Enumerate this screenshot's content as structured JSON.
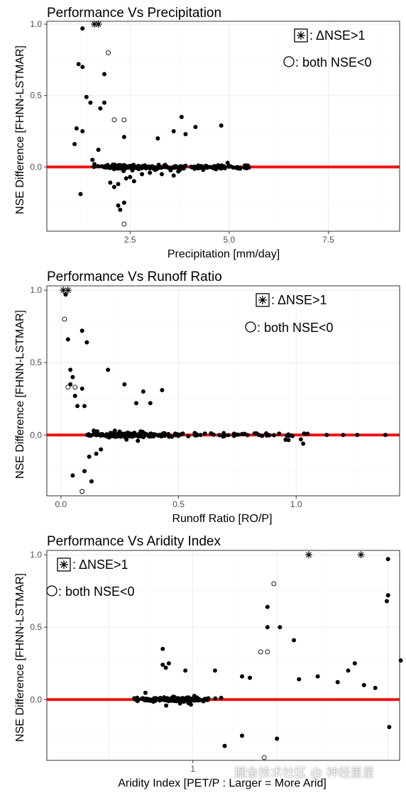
{
  "colors": {
    "point": "#000000",
    "zero_line": "#ee1111",
    "grid_major": "#ebebeb",
    "grid_minor": "#f5f5f5",
    "frame": "#333333"
  },
  "legend": {
    "star_label": ": ΔNSE>1",
    "circle_label": ": both NSE<0"
  },
  "watermark": "掘金技术社区 @ 神经星星",
  "chart_data": [
    {
      "type": "scatter",
      "title": "Performance Vs Precipitation",
      "xlabel": "Precipitation [mm/day]",
      "ylabel": "NSE Difference [FHNN-LSTMAR]",
      "xscale": "linear",
      "xlim": [
        0.4,
        9.3
      ],
      "ylim": [
        -0.45,
        1.02
      ],
      "xticks": [
        2.5,
        5.0,
        7.5
      ],
      "xtick_labels": [
        "2.5",
        "5.0",
        "7.5"
      ],
      "yticks": [
        0.0,
        0.5,
        1.0
      ],
      "ytick_labels": [
        "0.0",
        "0.5",
        "1.0"
      ],
      "grid": true,
      "legend_position": "top-right",
      "reference_line_y": 0,
      "stars": [
        [
          1.6,
          1.0
        ],
        [
          1.7,
          1.0
        ]
      ],
      "hollow": [
        [
          1.95,
          0.8
        ],
        [
          2.1,
          0.33
        ],
        [
          2.35,
          0.33
        ],
        [
          2.35,
          -0.4
        ]
      ],
      "filled": [
        [
          1.3,
          0.97
        ],
        [
          1.2,
          0.72
        ],
        [
          1.3,
          0.7
        ],
        [
          1.4,
          0.49
        ],
        [
          1.5,
          0.45
        ],
        [
          1.85,
          0.65
        ],
        [
          1.85,
          0.45
        ],
        [
          1.75,
          0.41
        ],
        [
          2.35,
          0.21
        ],
        [
          3.2,
          0.2
        ],
        [
          3.8,
          0.35
        ],
        [
          3.6,
          0.25
        ],
        [
          3.9,
          0.23
        ],
        [
          4.15,
          0.28
        ],
        [
          4.8,
          0.29
        ],
        [
          1.15,
          0.27
        ],
        [
          1.3,
          0.25
        ],
        [
          1.1,
          0.16
        ],
        [
          1.25,
          -0.19
        ],
        [
          2.25,
          -0.3
        ],
        [
          2.2,
          -0.27
        ],
        [
          2.35,
          -0.25
        ],
        [
          2.1,
          -0.14
        ],
        [
          2.2,
          -0.12
        ],
        [
          2.0,
          -0.11
        ],
        [
          1.55,
          0.05
        ],
        [
          1.7,
          0.12
        ],
        [
          1.6,
          0.02
        ],
        [
          2.4,
          -0.08
        ],
        [
          2.5,
          -0.07
        ],
        [
          2.6,
          -0.1
        ],
        [
          2.8,
          -0.05
        ],
        [
          3.0,
          -0.04
        ],
        [
          3.3,
          -0.05
        ],
        [
          3.6,
          -0.06
        ]
      ]
    },
    {
      "type": "scatter",
      "title": "Performance Vs Runoff Ratio",
      "xlabel": "Runoff Ratio [RO/P]",
      "ylabel": "NSE Difference [FHNN-LSTMAR]",
      "xscale": "linear",
      "xlim": [
        -0.06,
        1.44
      ],
      "ylim": [
        -0.42,
        1.03
      ],
      "xticks": [
        0.0,
        0.5,
        1.0
      ],
      "xtick_labels": [
        "0.0",
        "0.5",
        "1.0"
      ],
      "yticks": [
        0.0,
        0.5,
        1.0
      ],
      "ytick_labels": [
        "0.0",
        "0.5",
        "1.0"
      ],
      "grid": true,
      "legend_position": "top-right",
      "reference_line_y": 0,
      "stars": [
        [
          0.01,
          1.0
        ],
        [
          0.03,
          1.0
        ]
      ],
      "hollow": [
        [
          0.015,
          0.8
        ],
        [
          0.03,
          0.33
        ],
        [
          0.06,
          0.33
        ],
        [
          0.09,
          -0.39
        ]
      ],
      "filled": [
        [
          0.02,
          0.97
        ],
        [
          0.09,
          0.72
        ],
        [
          0.11,
          0.64
        ],
        [
          0.03,
          0.66
        ],
        [
          0.04,
          0.45
        ],
        [
          0.2,
          0.45
        ],
        [
          0.05,
          0.4
        ],
        [
          0.04,
          0.35
        ],
        [
          0.09,
          0.32
        ],
        [
          0.27,
          0.35
        ],
        [
          0.43,
          0.31
        ],
        [
          0.35,
          0.3
        ],
        [
          0.38,
          0.22
        ],
        [
          0.32,
          0.22
        ],
        [
          0.05,
          -0.28
        ],
        [
          0.13,
          -0.32
        ],
        [
          0.1,
          -0.25
        ],
        [
          0.12,
          -0.15
        ],
        [
          0.15,
          -0.13
        ],
        [
          0.17,
          -0.1
        ],
        [
          0.07,
          0.2
        ],
        [
          0.06,
          0.27
        ],
        [
          0.1,
          0.2
        ],
        [
          1.02,
          -0.03
        ],
        [
          1.03,
          -0.06
        ],
        [
          1.13,
          0.0
        ],
        [
          1.2,
          0.0
        ],
        [
          1.26,
          0.0
        ],
        [
          1.38,
          0.0
        ]
      ]
    },
    {
      "type": "scatter",
      "title": "Performance Vs Aridity Index",
      "xlabel": "Aridity Index [PET/P : Larger = More Arid]",
      "ylabel": "NSE Difference [FHNN-LSTMAR]",
      "xscale": "log",
      "xlim": [
        0.3,
        5.5
      ],
      "ylim": [
        -0.42,
        1.03
      ],
      "xticks": [
        1
      ],
      "xtick_labels": [
        "1"
      ],
      "yticks": [
        0.0,
        0.5,
        1.0
      ],
      "ytick_labels": [
        "0.0",
        "0.5",
        "1.0"
      ],
      "grid": true,
      "legend_position": "top-left",
      "reference_line_y": 0,
      "stars": [
        [
          2.6,
          1.0
        ],
        [
          4.0,
          1.0
        ]
      ],
      "hollow": [
        [
          1.95,
          0.8
        ],
        [
          1.75,
          0.33
        ],
        [
          1.85,
          0.33
        ],
        [
          1.8,
          -0.4
        ]
      ],
      "filled": [
        [
          5.0,
          0.97
        ],
        [
          5.0,
          0.72
        ],
        [
          4.95,
          0.68
        ],
        [
          1.85,
          0.64
        ],
        [
          1.85,
          0.5
        ],
        [
          2.05,
          0.5
        ],
        [
          2.3,
          0.41
        ],
        [
          5.55,
          0.27
        ],
        [
          5.05,
          -0.19
        ],
        [
          2.0,
          -0.27
        ],
        [
          1.3,
          -0.32
        ],
        [
          1.5,
          -0.25
        ],
        [
          0.82,
          0.25
        ],
        [
          0.8,
          0.22
        ],
        [
          0.78,
          0.24
        ],
        [
          0.78,
          0.35
        ],
        [
          0.94,
          0.2
        ],
        [
          1.2,
          0.2
        ],
        [
          1.5,
          0.16
        ],
        [
          1.6,
          0.15
        ],
        [
          3.8,
          0.25
        ],
        [
          3.6,
          0.2
        ],
        [
          4.1,
          0.1
        ],
        [
          4.5,
          0.08
        ],
        [
          3.3,
          0.12
        ],
        [
          2.8,
          0.16
        ],
        [
          2.4,
          0.14
        ]
      ]
    }
  ]
}
